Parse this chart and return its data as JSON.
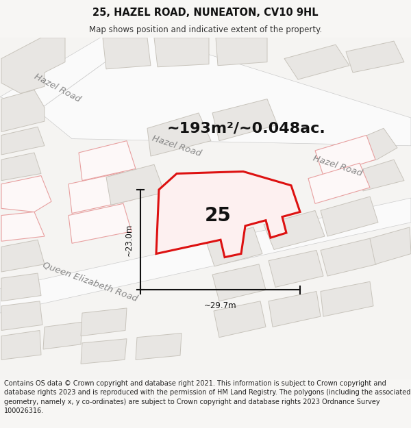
{
  "title": "25, HAZEL ROAD, NUNEATON, CV10 9HL",
  "subtitle": "Map shows position and indicative extent of the property.",
  "footer": "Contains OS data © Crown copyright and database right 2021. This information is subject to Crown copyright and database rights 2023 and is reproduced with the permission of HM Land Registry. The polygons (including the associated geometry, namely x, y co-ordinates) are subject to Crown copyright and database rights 2023 Ordnance Survey 100026316.",
  "area_text": "~193m²/~0.048ac.",
  "label_25": "25",
  "dim_width": "~29.7m",
  "dim_height": "~23.0m",
  "bg_color": "#f7f6f4",
  "map_bg": "#f0efed",
  "building_fill": "#e8e6e3",
  "building_edge": "#c8c4bc",
  "plot_outline_fill": "none",
  "plot_outline_color": "#e8e6e3",
  "highlight_edge": "#dd1111",
  "road_color": "#fafafa",
  "road_edge": "#cccccc",
  "other_plot_edge": "#e8a0a0",
  "other_plot_fill": "#fdf8f8",
  "title_fontsize": 10.5,
  "subtitle_fontsize": 8.5,
  "footer_fontsize": 7.0,
  "area_fontsize": 16,
  "label_fontsize": 20,
  "dim_fontsize": 8.5,
  "road_label_fontsize": 9.5
}
